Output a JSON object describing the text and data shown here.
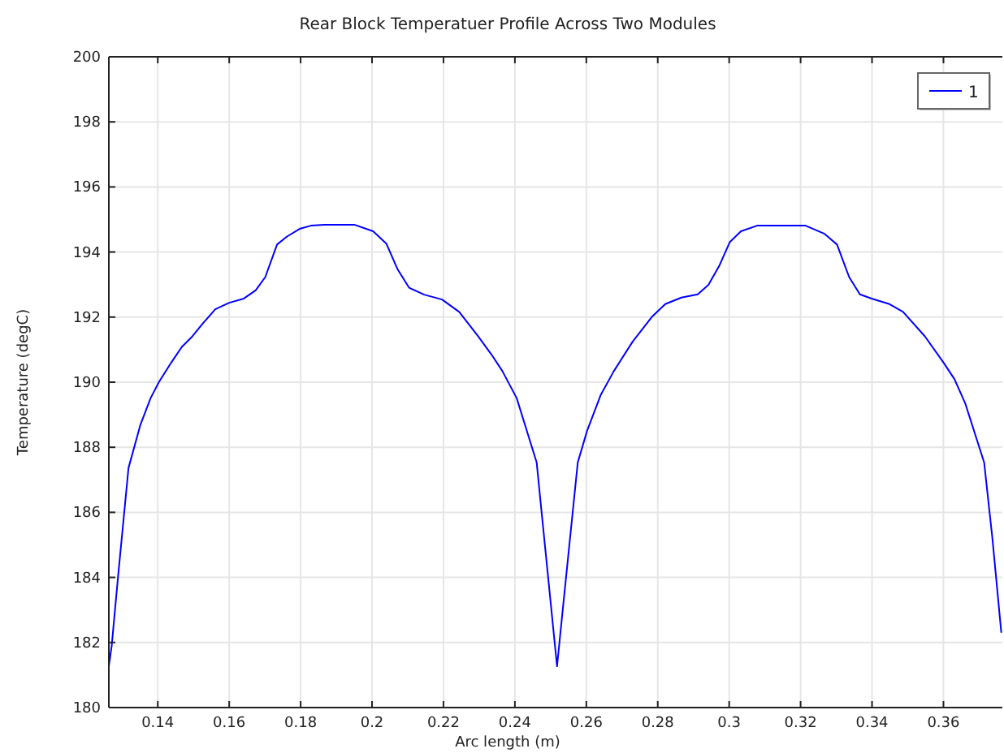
{
  "chart_data": {
    "type": "line",
    "title": "Rear Block Temperatuer Profile Across Two Modules",
    "xlabel": "Arc length (m)",
    "ylabel": "Temperature (degC)",
    "xlim": [
      0.1263,
      0.3765
    ],
    "ylim": [
      180,
      200
    ],
    "xticks": [
      0.14,
      0.16,
      0.18,
      {
        "value": 0.2,
        "label": "0.2"
      },
      0.22,
      0.24,
      0.26,
      0.28,
      {
        "value": 0.3,
        "label": "0.3"
      },
      0.32,
      0.34,
      0.36
    ],
    "yticks": [
      180,
      182,
      184,
      186,
      188,
      190,
      192,
      194,
      196,
      198,
      200
    ],
    "grid": true,
    "legend": "top right",
    "line_style": "solid",
    "marker": "none",
    "series": [
      {
        "name": "1",
        "color": "#0000ff",
        "x": [
          0.1263,
          0.1271,
          0.1289,
          0.1318,
          0.1351,
          0.138,
          0.1403,
          0.1437,
          0.1467,
          0.1497,
          0.1528,
          0.1561,
          0.16,
          0.1641,
          0.1674,
          0.1701,
          0.1734,
          0.1761,
          0.1799,
          0.1829,
          0.1867,
          0.195,
          0.2003,
          0.204,
          0.2071,
          0.2104,
          0.2146,
          0.2196,
          0.2244,
          0.2297,
          0.2335,
          0.2365,
          0.2405,
          0.2461,
          0.2473,
          0.2518,
          0.2533,
          0.2576,
          0.2602,
          0.264,
          0.2677,
          0.273,
          0.2783,
          0.2821,
          0.2866,
          0.2912,
          0.2942,
          0.2972,
          0.3002,
          0.3033,
          0.3078,
          0.3214,
          0.3267,
          0.3302,
          0.3336,
          0.3366,
          0.3399,
          0.3449,
          0.3487,
          0.3548,
          0.3601,
          0.3631,
          0.3661,
          0.3714,
          0.3737,
          0.3762
        ],
        "values": [
          181.27,
          181.9,
          184.05,
          187.36,
          188.68,
          189.51,
          190.0,
          190.59,
          191.08,
          191.41,
          191.83,
          192.24,
          192.44,
          192.57,
          192.82,
          193.23,
          194.23,
          194.47,
          194.72,
          194.81,
          194.84,
          194.84,
          194.64,
          194.26,
          193.48,
          192.9,
          192.69,
          192.54,
          192.16,
          191.41,
          190.84,
          190.34,
          189.51,
          187.53,
          186.2,
          181.27,
          182.9,
          187.53,
          188.5,
          189.6,
          190.34,
          191.25,
          192.0,
          192.4,
          192.6,
          192.7,
          192.99,
          193.57,
          194.31,
          194.64,
          194.81,
          194.81,
          194.56,
          194.23,
          193.23,
          192.7,
          192.57,
          192.4,
          192.16,
          191.41,
          190.59,
          190.09,
          189.35,
          187.53,
          185.21,
          182.3
        ]
      }
    ]
  }
}
